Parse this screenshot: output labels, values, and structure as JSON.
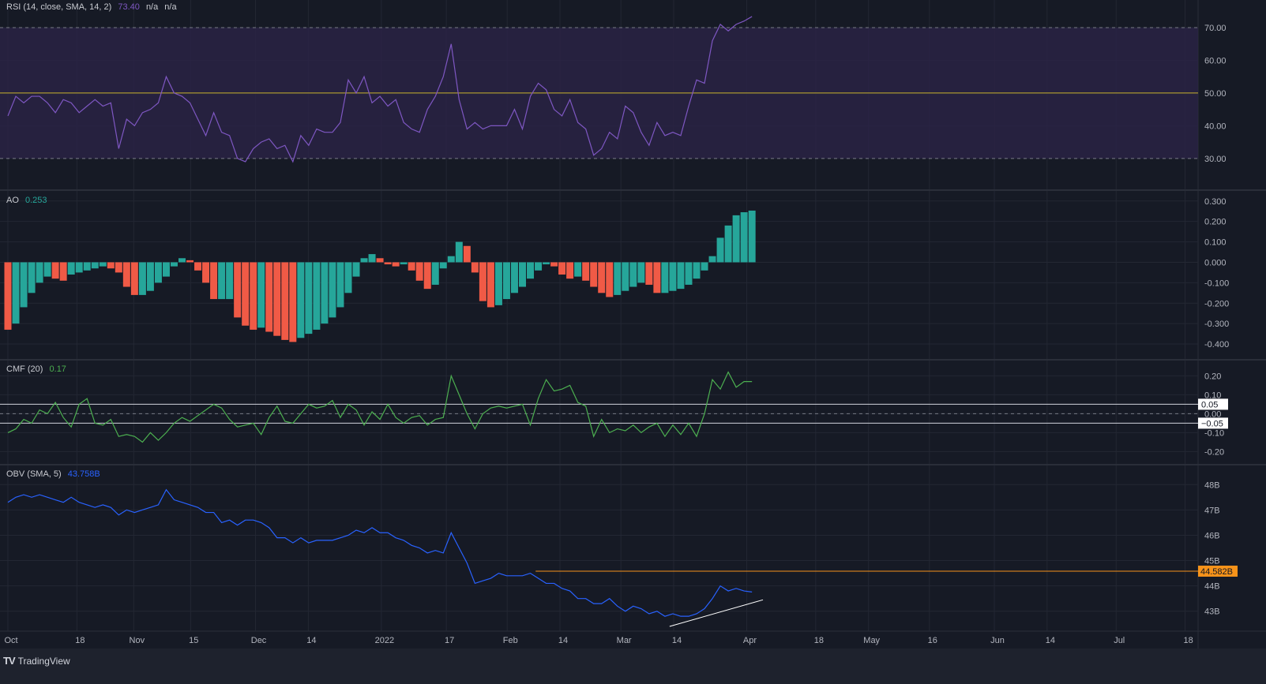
{
  "colors": {
    "bg": "#161a25",
    "grid": "#232733",
    "rsi": "#7e57c2",
    "rsi_band": "#2a2346",
    "mid": "#c9b32c",
    "ao_up": "#26a69a",
    "ao_down": "#f05a46",
    "cmf": "#4caf50",
    "obv": "#2962ff",
    "level": "#f7931a",
    "trend": "#ffffff"
  },
  "legends": {
    "rsi": {
      "name": "RSI (14, close, SMA, 14, 2)",
      "value": "73.40",
      "v2": "n/a",
      "v3": "n/a"
    },
    "ao": {
      "name": "AO",
      "value": "0.253"
    },
    "cmf": {
      "name": "CMF (20)",
      "value": "0.17"
    },
    "obv": {
      "name": "OBV (SMA, 5)",
      "value": "43.758B"
    }
  },
  "footer": {
    "brand": "TradingView"
  },
  "chart_data": [
    {
      "type": "line",
      "name": "RSI",
      "ylim": [
        22,
        77
      ],
      "ticks": [
        "30.00",
        "40.00",
        "50.00",
        "60.00",
        "70.00"
      ],
      "tick_values": [
        30,
        40,
        50,
        60,
        70
      ],
      "bands": {
        "upper": 70,
        "middle": 50,
        "lower": 30
      },
      "sample_step_days": 1.95,
      "values": [
        43,
        49,
        47,
        49,
        49,
        47,
        44,
        48,
        47,
        44,
        46,
        48,
        46,
        47,
        33,
        42,
        40,
        44,
        45,
        47,
        55,
        50,
        49,
        47,
        42,
        37,
        44,
        38,
        37,
        30,
        29,
        33,
        35,
        36,
        33,
        34,
        29,
        37,
        34,
        39,
        38,
        38,
        41,
        54,
        50,
        55,
        47,
        49,
        46,
        48,
        41,
        39,
        38,
        45,
        49,
        55,
        65,
        48,
        39,
        41,
        39,
        40,
        40,
        40,
        45,
        39,
        49,
        53,
        51,
        45,
        43,
        48,
        41,
        39,
        31,
        33,
        38,
        36,
        46,
        44,
        38,
        34,
        41,
        37,
        38,
        37,
        46,
        54,
        53,
        66,
        71,
        69,
        71,
        72,
        73.4
      ]
    },
    {
      "type": "bar",
      "name": "AO",
      "ylim": [
        -0.45,
        0.33
      ],
      "ticks": [
        "-0.400",
        "-0.300",
        "-0.200",
        "-0.100",
        "0.000",
        "0.100",
        "0.200",
        "0.300"
      ],
      "tick_values": [
        -0.4,
        -0.3,
        -0.2,
        -0.1,
        0,
        0.1,
        0.2,
        0.3
      ],
      "sample_step_days": 1.95,
      "values": [
        -0.33,
        -0.3,
        -0.22,
        -0.15,
        -0.1,
        -0.07,
        -0.08,
        -0.09,
        -0.06,
        -0.05,
        -0.04,
        -0.03,
        -0.02,
        -0.03,
        -0.05,
        -0.12,
        -0.16,
        -0.16,
        -0.14,
        -0.1,
        -0.07,
        -0.02,
        0.02,
        0.01,
        -0.04,
        -0.1,
        -0.18,
        -0.18,
        -0.18,
        -0.27,
        -0.31,
        -0.33,
        -0.32,
        -0.34,
        -0.36,
        -0.38,
        -0.39,
        -0.37,
        -0.35,
        -0.33,
        -0.3,
        -0.27,
        -0.22,
        -0.15,
        -0.07,
        0.02,
        0.04,
        0.02,
        -0.01,
        -0.02,
        -0.01,
        -0.04,
        -0.09,
        -0.13,
        -0.11,
        -0.03,
        0.03,
        0.1,
        0.08,
        -0.05,
        -0.19,
        -0.22,
        -0.21,
        -0.18,
        -0.15,
        -0.12,
        -0.08,
        -0.04,
        -0.01,
        -0.02,
        -0.06,
        -0.08,
        -0.07,
        -0.09,
        -0.12,
        -0.15,
        -0.17,
        -0.16,
        -0.14,
        -0.12,
        -0.1,
        -0.11,
        -0.15,
        -0.15,
        -0.14,
        -0.13,
        -0.11,
        -0.08,
        -0.04,
        0.03,
        0.12,
        0.18,
        0.23,
        0.245,
        0.253
      ]
    },
    {
      "type": "line",
      "name": "CMF",
      "ylim": [
        -0.24,
        0.26
      ],
      "ticks": [
        "-0.20",
        "-0.10",
        "0.00",
        "0.10",
        "0.20"
      ],
      "tick_values": [
        -0.2,
        -0.1,
        0,
        0.1,
        0.2
      ],
      "levels": [
        {
          "value": 0.05,
          "label": "0.05"
        },
        {
          "value": -0.05,
          "label": "−0.05"
        }
      ],
      "sample_step_days": 1.95,
      "values": [
        -0.1,
        -0.08,
        -0.03,
        -0.05,
        0.02,
        0.0,
        0.06,
        -0.02,
        -0.07,
        0.05,
        0.08,
        -0.05,
        -0.06,
        -0.03,
        -0.12,
        -0.11,
        -0.12,
        -0.15,
        -0.1,
        -0.14,
        -0.1,
        -0.05,
        -0.02,
        -0.04,
        -0.01,
        0.02,
        0.05,
        0.03,
        -0.03,
        -0.07,
        -0.06,
        -0.05,
        -0.11,
        -0.02,
        0.04,
        -0.04,
        -0.05,
        0.0,
        0.05,
        0.03,
        0.04,
        0.07,
        -0.02,
        0.05,
        0.02,
        -0.06,
        0.01,
        -0.03,
        0.05,
        -0.02,
        -0.05,
        -0.02,
        -0.01,
        -0.06,
        -0.03,
        -0.02,
        0.2,
        0.1,
        0.0,
        -0.08,
        0.0,
        0.03,
        0.04,
        0.03,
        0.04,
        0.05,
        -0.06,
        0.08,
        0.18,
        0.12,
        0.13,
        0.15,
        0.06,
        0.04,
        -0.12,
        -0.03,
        -0.1,
        -0.08,
        -0.09,
        -0.06,
        -0.1,
        -0.07,
        -0.05,
        -0.12,
        -0.06,
        -0.11,
        -0.05,
        -0.12,
        0.0,
        0.18,
        0.13,
        0.22,
        0.14,
        0.17,
        0.17
      ]
    },
    {
      "type": "line",
      "name": "OBV",
      "unit": "B",
      "ylim": [
        42.4,
        48.6
      ],
      "ticks": [
        "43B",
        "44B",
        "45B",
        "46B",
        "47B",
        "48B"
      ],
      "tick_values": [
        43,
        44,
        45,
        46,
        47,
        48
      ],
      "level": {
        "value": 44.582,
        "label": "44.582B",
        "from_day": 130
      },
      "trendline": {
        "from": [
          163,
          42.4
        ],
        "to": [
          186,
          43.45
        ]
      },
      "sample_step_days": 1.95,
      "values": [
        47.3,
        47.5,
        47.6,
        47.5,
        47.6,
        47.5,
        47.4,
        47.3,
        47.5,
        47.3,
        47.2,
        47.1,
        47.2,
        47.1,
        46.8,
        47.0,
        46.9,
        47.0,
        47.1,
        47.2,
        47.8,
        47.4,
        47.3,
        47.2,
        47.1,
        46.9,
        46.9,
        46.5,
        46.6,
        46.4,
        46.6,
        46.6,
        46.5,
        46.3,
        45.9,
        45.9,
        45.7,
        45.9,
        45.7,
        45.8,
        45.8,
        45.8,
        45.9,
        46.0,
        46.2,
        46.1,
        46.3,
        46.1,
        46.1,
        45.9,
        45.8,
        45.6,
        45.5,
        45.3,
        45.4,
        45.3,
        46.1,
        45.5,
        44.9,
        44.1,
        44.2,
        44.3,
        44.5,
        44.4,
        44.4,
        44.4,
        44.5,
        44.3,
        44.1,
        44.1,
        43.9,
        43.8,
        43.5,
        43.5,
        43.3,
        43.3,
        43.5,
        43.2,
        43.0,
        43.2,
        43.1,
        42.9,
        43.0,
        42.8,
        42.9,
        42.8,
        42.8,
        42.9,
        43.1,
        43.5,
        44.0,
        43.8,
        43.9,
        43.8,
        43.76
      ]
    }
  ],
  "time_axis": {
    "labels": [
      "Oct",
      "18",
      "Nov",
      "15",
      "Dec",
      "14",
      "2022",
      "17",
      "Feb",
      "14",
      "Mar",
      "14",
      "Apr",
      "18",
      "May",
      "16",
      "Jun",
      "14",
      "Jul",
      "18"
    ],
    "days": [
      0,
      17,
      31,
      45,
      61,
      74,
      92,
      108,
      123,
      136,
      151,
      164,
      182,
      199,
      212,
      227,
      243,
      256,
      273,
      290
    ]
  }
}
